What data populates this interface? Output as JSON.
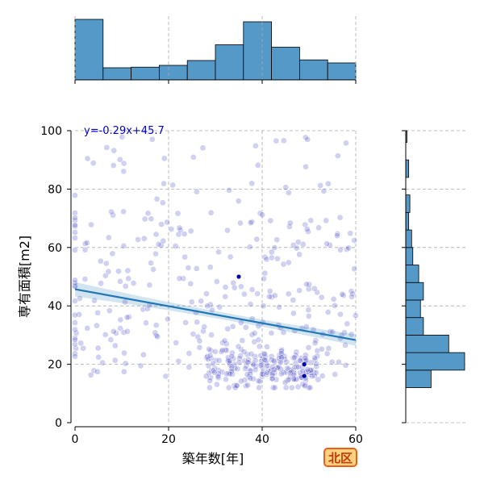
{
  "chart_data": {
    "type": "scatter",
    "xlabel": "築年数[年]",
    "ylabel": "専有面積[m2]",
    "xlim": [
      0,
      60
    ],
    "ylim": [
      0,
      100
    ],
    "xticks": [
      0,
      20,
      40,
      60
    ],
    "yticks": [
      0,
      20,
      40,
      60,
      80,
      100
    ],
    "grid": true,
    "regression": {
      "slope": -0.29,
      "intercept": 45.7,
      "label": "y=-0.29x+45.7"
    },
    "highlight_points": [
      [
        35,
        50
      ],
      [
        49,
        16
      ],
      [
        49,
        20
      ]
    ],
    "x_histogram": {
      "bin_edges": [
        0,
        6,
        12,
        18,
        24,
        30,
        36,
        42,
        48,
        54,
        60
      ],
      "relative_heights": [
        1.0,
        0.2,
        0.21,
        0.24,
        0.32,
        0.58,
        0.96,
        0.54,
        0.33,
        0.28
      ]
    },
    "y_histogram": {
      "bin_edges": [
        12,
        18,
        24,
        30,
        36,
        42,
        48,
        54,
        60,
        66,
        72,
        78,
        84,
        90,
        96,
        100
      ],
      "relative_heights": [
        0.43,
        1.0,
        0.73,
        0.3,
        0.25,
        0.3,
        0.22,
        0.12,
        0.1,
        0.05,
        0.07,
        0.0,
        0.05,
        0.0,
        0.02
      ]
    },
    "point_color": "#5555cc",
    "line_color": "#1f77b4",
    "hist_color": "#5599c8"
  },
  "badge": {
    "label": "北区"
  }
}
